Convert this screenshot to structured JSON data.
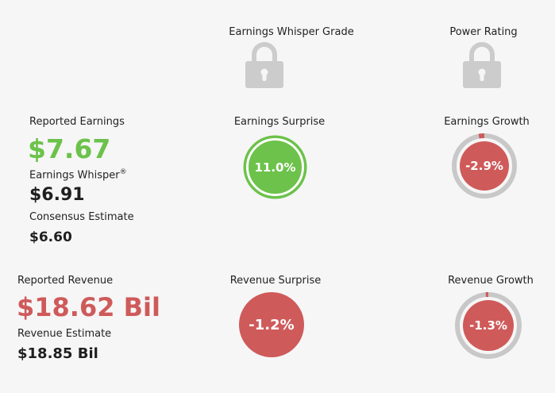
{
  "grades": {
    "whisper_grade_label": "Earnings Whisper Grade",
    "power_rating_label": "Power Rating",
    "lock_icon": "lock-icon"
  },
  "earnings": {
    "reported_label": "Reported Earnings",
    "reported_value": "$7.67",
    "whisper_label": "Earnings Whisper",
    "whisper_mark": "®",
    "whisper_value": "$6.91",
    "consensus_label": "Consensus Estimate",
    "consensus_value": "$6.60",
    "surprise_label": "Earnings Surprise",
    "surprise_value": "11.0%",
    "growth_label": "Earnings Growth",
    "growth_value": "-2.9%"
  },
  "revenue": {
    "reported_label": "Reported Revenue",
    "reported_value": "$18.62 Bil",
    "estimate_label": "Revenue Estimate",
    "estimate_value": "$18.85 Bil",
    "surprise_label": "Revenue Surprise",
    "surprise_value": "-1.2%",
    "growth_label": "Revenue Growth",
    "growth_value": "-1.3%"
  },
  "colors": {
    "positive": "#6cc24a",
    "negative": "#cf5a5a",
    "ring": "#c8c8c8",
    "lock": "#cccccc"
  }
}
